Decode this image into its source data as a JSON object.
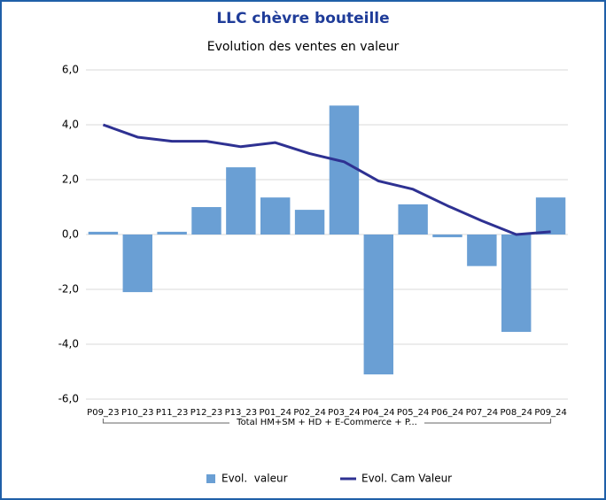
{
  "chart_data": {
    "type": "bar",
    "title": "LLC chèvre bouteille",
    "subtitle": "Evolution des ventes en valeur",
    "categories": [
      "P09_23",
      "P10_23",
      "P11_23",
      "P12_23",
      "P13_23",
      "P01_24",
      "P02_24",
      "P03_24",
      "P04_24",
      "P05_24",
      "P06_24",
      "P07_24",
      "P08_24",
      "P09_24"
    ],
    "group_label": "Total HM+SM + HD + E-Commerce + P...",
    "series": [
      {
        "name": "Evol.  valeur",
        "type": "bar",
        "color": "#6a9fd4",
        "values": [
          0.1,
          -2.1,
          0.1,
          1.0,
          2.45,
          1.35,
          0.9,
          4.7,
          -5.1,
          1.1,
          -0.1,
          -1.15,
          -3.55,
          1.35
        ]
      },
      {
        "name": "Evol. Cam Valeur",
        "type": "line",
        "color": "#2e3192",
        "values": [
          4.0,
          3.55,
          3.4,
          3.4,
          3.2,
          3.35,
          2.95,
          2.65,
          1.95,
          1.65,
          1.05,
          0.5,
          0.0,
          0.1
        ]
      }
    ],
    "ylim": [
      -6,
      6
    ],
    "yticks": [
      {
        "value": -6,
        "label": "-6,0"
      },
      {
        "value": -4,
        "label": "-4,0"
      },
      {
        "value": -2,
        "label": "-2,0"
      },
      {
        "value": 0,
        "label": "0,0"
      },
      {
        "value": 2,
        "label": "2,0"
      },
      {
        "value": 4,
        "label": "4,0"
      },
      {
        "value": 6,
        "label": "6,0"
      }
    ],
    "grid": true,
    "legend": "bottom"
  }
}
